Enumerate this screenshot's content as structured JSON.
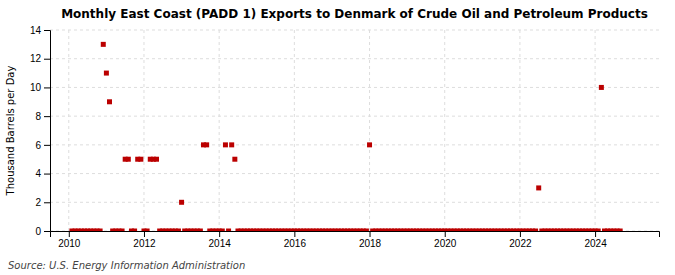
{
  "chart_data": {
    "type": "scatter",
    "title": "Monthly East Coast (PADD 1) Exports to Denmark of Crude Oil and Petroleum Products",
    "ylabel": "Thousand Barrels per Day",
    "source": "Source: U.S. Energy Information Administration",
    "color": "#bb0000",
    "marker": "square",
    "grid": true,
    "xlim": [
      2009.5,
      2025.7
    ],
    "xticks": [
      2010,
      2012,
      2014,
      2016,
      2018,
      2020,
      2022,
      2024
    ],
    "ylim": [
      0,
      14
    ],
    "yticks": [
      0,
      2,
      4,
      6,
      8,
      10,
      12,
      14
    ],
    "x": [
      2010.083,
      2010.167,
      2010.25,
      2010.333,
      2010.417,
      2010.5,
      2010.583,
      2010.667,
      2010.75,
      2010.833,
      2010.917,
      2011.0,
      2011.083,
      2011.167,
      2011.25,
      2011.333,
      2011.417,
      2011.5,
      2011.583,
      2011.667,
      2011.75,
      2011.833,
      2011.917,
      2012.0,
      2012.083,
      2012.167,
      2012.25,
      2012.333,
      2012.417,
      2012.5,
      2012.583,
      2012.667,
      2012.75,
      2012.833,
      2012.917,
      2013.0,
      2013.083,
      2013.167,
      2013.25,
      2013.333,
      2013.417,
      2013.5,
      2013.583,
      2013.667,
      2013.75,
      2013.833,
      2013.917,
      2014.0,
      2014.083,
      2014.167,
      2014.25,
      2014.333,
      2014.417,
      2014.5,
      2014.583,
      2014.667,
      2014.75,
      2014.833,
      2014.917,
      2015.0,
      2015.083,
      2015.167,
      2015.25,
      2015.333,
      2015.417,
      2015.5,
      2015.583,
      2015.667,
      2015.75,
      2015.833,
      2015.917,
      2016.0,
      2016.083,
      2016.167,
      2016.25,
      2016.333,
      2016.417,
      2016.5,
      2016.583,
      2016.667,
      2016.75,
      2016.833,
      2016.917,
      2017.0,
      2017.083,
      2017.167,
      2017.25,
      2017.333,
      2017.417,
      2017.5,
      2017.583,
      2017.667,
      2017.75,
      2017.833,
      2017.917,
      2018.0,
      2018.083,
      2018.167,
      2018.25,
      2018.333,
      2018.417,
      2018.5,
      2018.583,
      2018.667,
      2018.75,
      2018.833,
      2018.917,
      2019.0,
      2019.083,
      2019.167,
      2019.25,
      2019.333,
      2019.417,
      2019.5,
      2019.583,
      2019.667,
      2019.75,
      2019.833,
      2019.917,
      2020.0,
      2020.083,
      2020.167,
      2020.25,
      2020.333,
      2020.417,
      2020.5,
      2020.583,
      2020.667,
      2020.75,
      2020.833,
      2020.917,
      2021.0,
      2021.083,
      2021.167,
      2021.25,
      2021.333,
      2021.417,
      2021.5,
      2021.583,
      2021.667,
      2021.75,
      2021.833,
      2021.917,
      2022.0,
      2022.083,
      2022.167,
      2022.25,
      2022.333,
      2022.417,
      2022.5,
      2022.583,
      2022.667,
      2022.75,
      2022.833,
      2022.917,
      2023.0,
      2023.083,
      2023.167,
      2023.25,
      2023.333,
      2023.417,
      2023.5,
      2023.583,
      2023.667,
      2023.75,
      2023.833,
      2023.917,
      2024.0,
      2024.083,
      2024.167,
      2024.25,
      2024.333,
      2024.417,
      2024.5,
      2024.583,
      2024.667
    ],
    "values": [
      0,
      0,
      0,
      0,
      0,
      0,
      0,
      0,
      0,
      0,
      13.0,
      11.0,
      9.0,
      0,
      0,
      0,
      0,
      5.0,
      5.0,
      0,
      0,
      5.0,
      5.0,
      0,
      0,
      5.0,
      5.0,
      5.0,
      0,
      0,
      0,
      0,
      0,
      0,
      0,
      2.0,
      0,
      0,
      0,
      0,
      0,
      0,
      6.0,
      6.0,
      0,
      0,
      0,
      0,
      0,
      6.0,
      0,
      6.0,
      5.0,
      0,
      0,
      0,
      0,
      0,
      0,
      0,
      0,
      0,
      0,
      0,
      0,
      0,
      0,
      0,
      0,
      0,
      0,
      0,
      0,
      0,
      0,
      0,
      0,
      0,
      0,
      0,
      0,
      0,
      0,
      0,
      0,
      0,
      0,
      0,
      0,
      0,
      0,
      0,
      0,
      0,
      0,
      6.0,
      0,
      0,
      0,
      0,
      0,
      0,
      0,
      0,
      0,
      0,
      0,
      0,
      0,
      0,
      0,
      0,
      0,
      0,
      0,
      0,
      0,
      0,
      0,
      0,
      0,
      0,
      0,
      0,
      0,
      0,
      0,
      0,
      0,
      0,
      0,
      0,
      0,
      0,
      0,
      0,
      0,
      0,
      0,
      0,
      0,
      0,
      0,
      0,
      0,
      0,
      0,
      0,
      0,
      3.0,
      0,
      0,
      0,
      0,
      0,
      0,
      0,
      0,
      0,
      0,
      0,
      0,
      0,
      0,
      0,
      0,
      0,
      0,
      0,
      10.0,
      0,
      0,
      0,
      0,
      0,
      0
    ]
  }
}
